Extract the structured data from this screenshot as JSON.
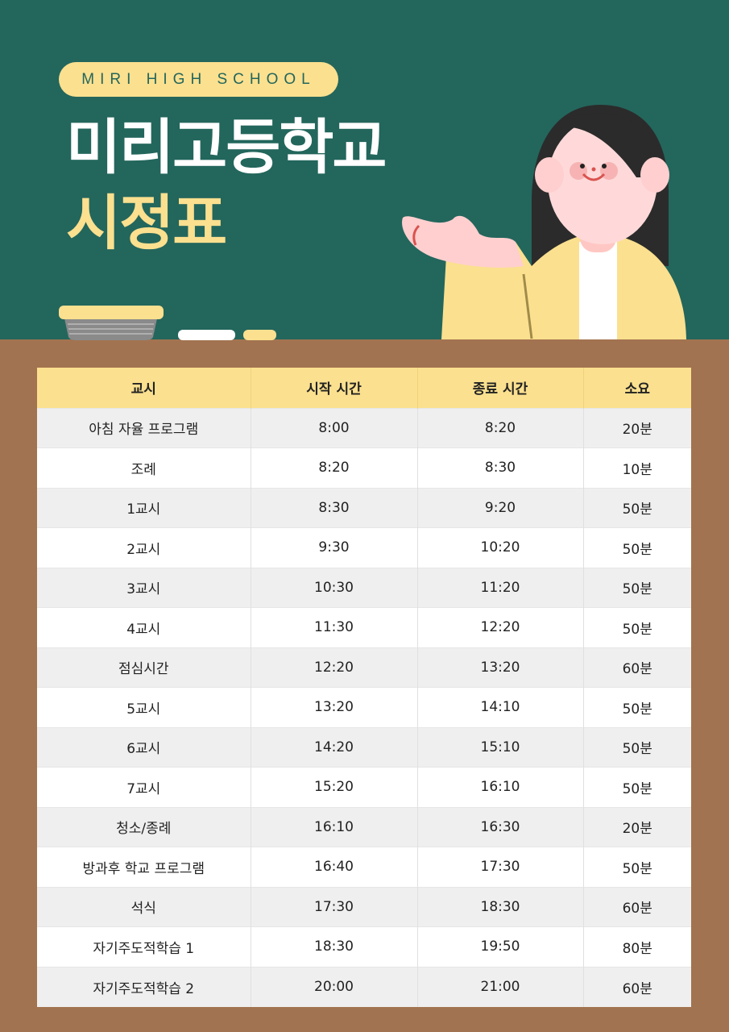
{
  "header": {
    "badge": "MIRI HIGH SCHOOL",
    "title": "미리고등학교",
    "subtitle": "시정표"
  },
  "colors": {
    "board": "#23665c",
    "accent": "#fbe08f",
    "desk": "#a27350"
  },
  "table": {
    "columns": [
      "교시",
      "시작 시간",
      "종료 시간",
      "소요"
    ],
    "rows": [
      [
        "아침 자율 프로그램",
        "8:00",
        "8:20",
        "20분"
      ],
      [
        "조례",
        "8:20",
        "8:30",
        "10분"
      ],
      [
        "1교시",
        "8:30",
        "9:20",
        "50분"
      ],
      [
        "2교시",
        "9:30",
        "10:20",
        "50분"
      ],
      [
        "3교시",
        "10:30",
        "11:20",
        "50분"
      ],
      [
        "4교시",
        "11:30",
        "12:20",
        "50분"
      ],
      [
        "점심시간",
        "12:20",
        "13:20",
        "60분"
      ],
      [
        "5교시",
        "13:20",
        "14:10",
        "50분"
      ],
      [
        "6교시",
        "14:20",
        "15:10",
        "50분"
      ],
      [
        "7교시",
        "15:20",
        "16:10",
        "50분"
      ],
      [
        "청소/종례",
        "16:10",
        "16:30",
        "20분"
      ],
      [
        "방과후 학교 프로그램",
        "16:40",
        "17:30",
        "50분"
      ],
      [
        "석식",
        "17:30",
        "18:30",
        "60분"
      ],
      [
        "자기주도적학습 1",
        "18:30",
        "19:50",
        "80분"
      ],
      [
        "자기주도적학습 2",
        "20:00",
        "21:00",
        "60분"
      ]
    ]
  }
}
